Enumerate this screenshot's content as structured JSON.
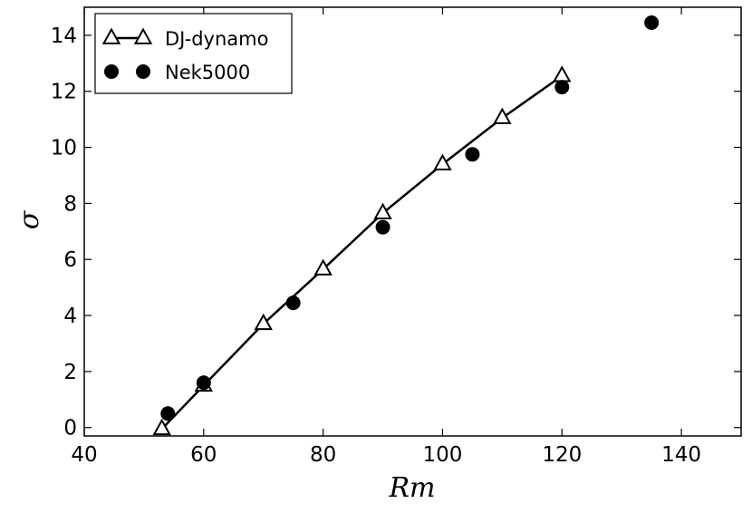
{
  "chart_data": {
    "type": "scatter",
    "xlabel": "Rm",
    "ylabel": "σ",
    "xlim": [
      40,
      150
    ],
    "ylim": [
      -0.3,
      15
    ],
    "xticks": [
      "40",
      "60",
      "80",
      "100",
      "120",
      "140"
    ],
    "yticks": [
      "0",
      "2",
      "4",
      "6",
      "8",
      "10",
      "12",
      "14"
    ],
    "grid": false,
    "legend_position": "top-left",
    "series": [
      {
        "name": "DJ-dynamo",
        "style": "line-triangle",
        "color": "#000000",
        "x": [
          53,
          60,
          70,
          80,
          90,
          100,
          110,
          120
        ],
        "y": [
          -0.05,
          1.5,
          3.7,
          5.65,
          7.65,
          9.4,
          11.05,
          12.55
        ]
      },
      {
        "name": "Nek5000",
        "style": "circle",
        "color": "#000000",
        "x": [
          54,
          60,
          75,
          90,
          105,
          120,
          135
        ],
        "y": [
          0.5,
          1.6,
          4.45,
          7.15,
          9.75,
          12.15,
          14.45
        ]
      }
    ]
  }
}
